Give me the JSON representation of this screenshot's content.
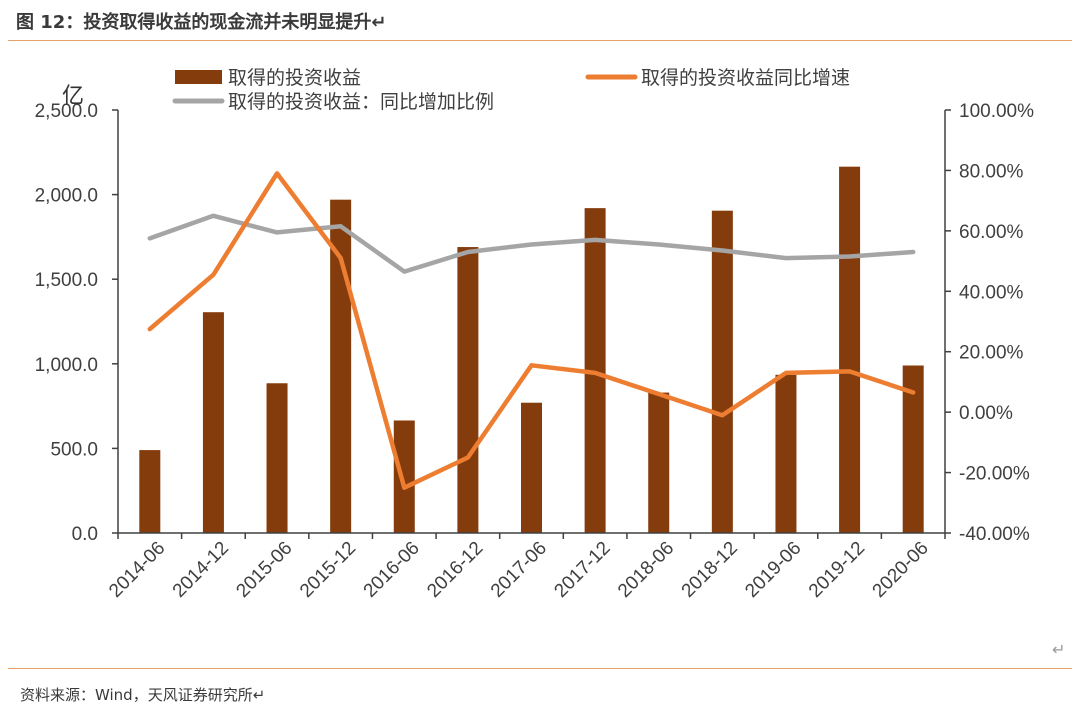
{
  "figure": {
    "title": "图 12：投资取得收益的现金流并未明显提升↵",
    "source": "资料来源：Wind，天风证券研究所↵",
    "return_mark": "↵"
  },
  "chart_data": {
    "type": "bar",
    "unit_label": "亿",
    "categories": [
      "2014-06",
      "2014-12",
      "2015-06",
      "2015-12",
      "2016-06",
      "2016-12",
      "2017-06",
      "2017-12",
      "2018-06",
      "2018-12",
      "2019-06",
      "2019-12",
      "2020-06"
    ],
    "y_left": {
      "ylim": [
        0,
        2500
      ],
      "ticks": [
        "0.0",
        "500.0",
        "1,000.0",
        "1,500.0",
        "2,000.0",
        "2,500.0"
      ]
    },
    "y_right": {
      "ylim": [
        -40,
        100
      ],
      "ticks": [
        "-40.00%",
        "-20.00%",
        "0.00%",
        "20.00%",
        "40.00%",
        "60.00%",
        "80.00%",
        "100.00%"
      ]
    },
    "series": [
      {
        "name": "取得的投资收益",
        "kind": "bar",
        "axis": "left",
        "color": "#843c0c",
        "values": [
          490,
          1305,
          885,
          1970,
          665,
          1690,
          770,
          1920,
          830,
          1905,
          935,
          2165,
          990
        ]
      },
      {
        "name": "取得的投资收益同比增速",
        "kind": "line",
        "axis": "right",
        "color": "#ed7d31",
        "values": [
          27.5,
          45.5,
          79,
          51,
          -25,
          -15,
          15.5,
          13,
          6,
          -1,
          13,
          13.5,
          6.5
        ]
      },
      {
        "name": "取得的投资收益：同比增加比例",
        "kind": "line",
        "axis": "right",
        "color": "#a5a5a5",
        "values": [
          57.5,
          65,
          59.5,
          61.5,
          46.5,
          53,
          55.5,
          57,
          55.5,
          53.5,
          51,
          51.5,
          53
        ]
      }
    ],
    "legend": "top",
    "grid": false
  }
}
